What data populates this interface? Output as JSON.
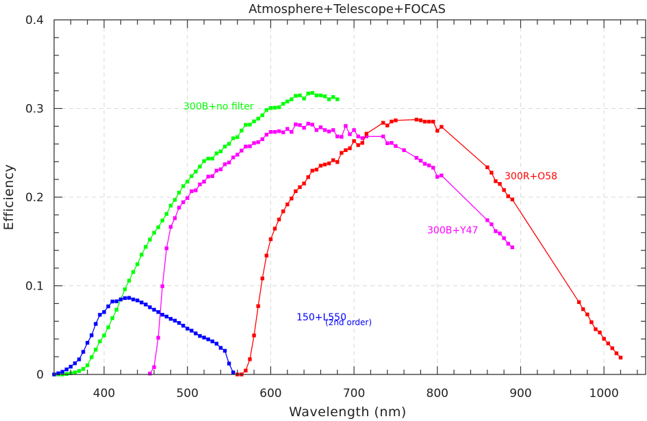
{
  "chart_data": {
    "type": "line",
    "title": "Atmosphere+Telescope+FOCAS",
    "xlabel": "Wavelength (nm)",
    "ylabel": "Efficiency",
    "xlim": [
      340,
      1050
    ],
    "ylim": [
      0,
      0.4
    ],
    "xticks": [
      400,
      500,
      600,
      700,
      800,
      900,
      1000
    ],
    "xtick_labels": [
      "400",
      "500",
      "600",
      "700",
      "800",
      "900",
      "1000"
    ],
    "yticks": [
      0,
      0.1,
      0.2,
      0.3,
      0.4
    ],
    "ytick_labels": [
      "0",
      "0.1",
      "0.2",
      "0.3",
      "0.4"
    ],
    "grid": true,
    "legend": "none (inline annotations)",
    "series": [
      {
        "name": "300B+no filter",
        "color": "#00ff00",
        "x": [
          345,
          350,
          355,
          360,
          365,
          370,
          375,
          380,
          385,
          390,
          395,
          400,
          405,
          410,
          415,
          420,
          425,
          430,
          435,
          440,
          445,
          450,
          455,
          460,
          465,
          470,
          475,
          480,
          485,
          490,
          495,
          500,
          505,
          510,
          515,
          520,
          525,
          530,
          535,
          540,
          545,
          550,
          555,
          560,
          565,
          570,
          575,
          580,
          585,
          590,
          595,
          600,
          605,
          610,
          615,
          620,
          625,
          630,
          635,
          640,
          645,
          650,
          655,
          660,
          665,
          670,
          675,
          680
        ],
        "y": [
          0,
          0,
          0.0005,
          0.0013,
          0.0023,
          0.0039,
          0.0062,
          0.0103,
          0.0195,
          0.028,
          0.0373,
          0.044,
          0.0532,
          0.0635,
          0.073,
          0.0846,
          0.0961,
          0.1058,
          0.1156,
          0.1243,
          0.1351,
          0.1439,
          0.1521,
          0.1598,
          0.166,
          0.1737,
          0.181,
          0.1905,
          0.1969,
          0.2051,
          0.2124,
          0.2175,
          0.2237,
          0.2288,
          0.2345,
          0.2407,
          0.2435,
          0.2435,
          0.2494,
          0.2517,
          0.2571,
          0.2602,
          0.2664,
          0.2677,
          0.2751,
          0.2816,
          0.2818,
          0.2855,
          0.2886,
          0.2924,
          0.2983,
          0.3006,
          0.3009,
          0.3014,
          0.3053,
          0.3079,
          0.3104,
          0.3143,
          0.3148,
          0.3112,
          0.3169,
          0.3176,
          0.3148,
          0.3148,
          0.3138,
          0.3104,
          0.313,
          0.3104
        ]
      },
      {
        "name": "300B+Y47",
        "color": "#ff00ff",
        "x": [
          455,
          460,
          465,
          470,
          475,
          480,
          485,
          490,
          495,
          500,
          505,
          510,
          515,
          520,
          525,
          530,
          535,
          540,
          545,
          550,
          555,
          560,
          565,
          570,
          575,
          580,
          585,
          590,
          595,
          600,
          605,
          610,
          615,
          620,
          625,
          630,
          635,
          640,
          645,
          650,
          655,
          660,
          665,
          670,
          675,
          680,
          685,
          690,
          695,
          700,
          705,
          710,
          715,
          735,
          740,
          745,
          750,
          760,
          775,
          780,
          785,
          790,
          795,
          800,
          805,
          860,
          865,
          870,
          875,
          880,
          885,
          890
        ],
        "y": [
          0.001,
          0.0082,
          0.0414,
          0.0995,
          0.1423,
          0.1665,
          0.1763,
          0.1882,
          0.1943,
          0.199,
          0.2067,
          0.2077,
          0.2144,
          0.2175,
          0.2232,
          0.2237,
          0.2299,
          0.2314,
          0.2371,
          0.2391,
          0.2448,
          0.2479,
          0.2525,
          0.2571,
          0.2574,
          0.261,
          0.262,
          0.2654,
          0.2705,
          0.2736,
          0.2736,
          0.2744,
          0.2731,
          0.277,
          0.2736,
          0.2821,
          0.2813,
          0.2782,
          0.2829,
          0.2818,
          0.2757,
          0.2788,
          0.2757,
          0.2741,
          0.2757,
          0.2685,
          0.268,
          0.2803,
          0.271,
          0.2757,
          0.2685,
          0.2666,
          0.2685,
          0.2685,
          0.2608,
          0.2612,
          0.2577,
          0.253,
          0.2443,
          0.2412,
          0.2376,
          0.2358,
          0.2332,
          0.2229,
          0.2245,
          0.174,
          0.1694,
          0.1616,
          0.1591,
          0.1537,
          0.1475,
          0.1434
        ]
      },
      {
        "name": "300R+O58",
        "color": "#ff0000",
        "x": [
          560,
          565,
          570,
          575,
          580,
          585,
          590,
          595,
          600,
          605,
          610,
          615,
          620,
          625,
          630,
          635,
          640,
          645,
          650,
          655,
          660,
          665,
          670,
          675,
          680,
          685,
          690,
          695,
          700,
          705,
          710,
          715,
          735,
          740,
          745,
          750,
          775,
          780,
          785,
          790,
          795,
          800,
          805,
          860,
          865,
          870,
          875,
          880,
          885,
          890,
          970,
          975,
          980,
          985,
          990,
          995,
          1000,
          1005,
          1010,
          1015,
          1020
        ],
        "y": [
          0,
          0,
          0.0044,
          0.0172,
          0.044,
          0.0771,
          0.1083,
          0.1341,
          0.1526,
          0.1645,
          0.1748,
          0.184,
          0.1918,
          0.1985,
          0.2067,
          0.2113,
          0.2154,
          0.2226,
          0.2299,
          0.2311,
          0.2355,
          0.2368,
          0.2381,
          0.2417,
          0.2396,
          0.25,
          0.253,
          0.2551,
          0.2633,
          0.2587,
          0.2612,
          0.2716,
          0.2839,
          0.2808,
          0.2853,
          0.2866,
          0.2875,
          0.2867,
          0.2852,
          0.2852,
          0.2852,
          0.2749,
          0.2793,
          0.2337,
          0.2276,
          0.218,
          0.2149,
          0.208,
          0.201,
          0.1974,
          0.0816,
          0.0736,
          0.0677,
          0.0589,
          0.051,
          0.0474,
          0.0402,
          0.035,
          0.0296,
          0.0239,
          0.019
        ]
      },
      {
        "name": "150+L550",
        "subtitle": "(2nd order)",
        "color": "#0000ff",
        "x": [
          340,
          345,
          350,
          355,
          360,
          365,
          370,
          375,
          380,
          385,
          390,
          395,
          400,
          405,
          410,
          415,
          420,
          425,
          430,
          435,
          440,
          445,
          450,
          455,
          460,
          465,
          470,
          475,
          480,
          485,
          490,
          495,
          500,
          505,
          510,
          515,
          520,
          525,
          530,
          535,
          540,
          545,
          550,
          555
        ],
        "y": [
          0,
          0.0013,
          0.003,
          0.0057,
          0.0088,
          0.0126,
          0.017,
          0.0255,
          0.0357,
          0.0442,
          0.057,
          0.0673,
          0.0704,
          0.0768,
          0.0823,
          0.0825,
          0.0846,
          0.0861,
          0.0864,
          0.0846,
          0.0835,
          0.0812,
          0.0789,
          0.0758,
          0.073,
          0.0704,
          0.0674,
          0.0653,
          0.0627,
          0.0607,
          0.0581,
          0.055,
          0.0517,
          0.0494,
          0.0463,
          0.0434,
          0.0416,
          0.0396,
          0.0373,
          0.0347,
          0.03,
          0.0267,
          0.0123,
          0.0023
        ]
      }
    ]
  }
}
